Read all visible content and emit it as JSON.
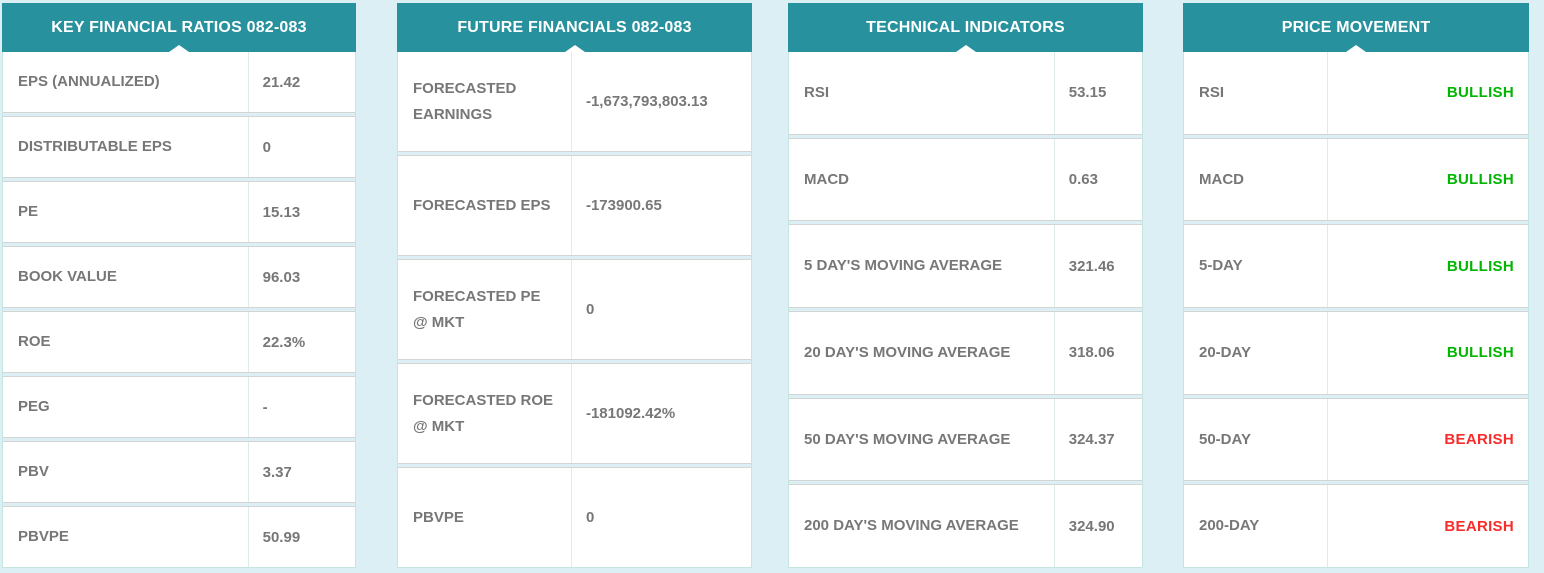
{
  "theme": {
    "page_background": "#dbeff5",
    "header_background": "#27919e",
    "header_text": "#ffffff",
    "label_color": "#777777",
    "bullish_color": "#01b501",
    "bearish_color": "#fa2b2b"
  },
  "panels": [
    {
      "title": "KEY FINANCIAL RATIOS 082-083",
      "rows": [
        {
          "label": "EPS (ANNUALIZED)",
          "value": "21.42"
        },
        {
          "label": "DISTRIBUTABLE EPS",
          "value": "0"
        },
        {
          "label": "PE",
          "value": "15.13"
        },
        {
          "label": "BOOK VALUE",
          "value": "96.03"
        },
        {
          "label": "ROE",
          "value": "22.3%"
        },
        {
          "label": "PEG",
          "value": "-"
        },
        {
          "label": "PBV",
          "value": "3.37"
        },
        {
          "label": "PBVPE",
          "value": "50.99"
        }
      ]
    },
    {
      "title": "FUTURE FINANCIALS 082-083",
      "rows": [
        {
          "label": "FORECASTED\nEARNINGS",
          "value": "-1,673,793,803.13"
        },
        {
          "label": "FORECASTED EPS",
          "value": "-173900.65"
        },
        {
          "label": "FORECASTED PE\n@ MKT",
          "value": "0"
        },
        {
          "label": "FORECASTED ROE\n@ MKT",
          "value": "-181092.42%"
        },
        {
          "label": "PBVPE",
          "value": "0"
        }
      ]
    },
    {
      "title": "TECHNICAL INDICATORS",
      "rows": [
        {
          "label": "RSI",
          "value": "53.15"
        },
        {
          "label": "MACD",
          "value": "0.63"
        },
        {
          "label": "5 DAY'S MOVING AVERAGE",
          "value": "321.46"
        },
        {
          "label": "20 DAY'S MOVING AVERAGE",
          "value": "318.06"
        },
        {
          "label": "50 DAY'S MOVING AVERAGE",
          "value": "324.37"
        },
        {
          "label": "200 DAY'S MOVING AVERAGE",
          "value": "324.90"
        }
      ]
    },
    {
      "title": "PRICE MOVEMENT",
      "rows": [
        {
          "label": "RSI",
          "value": "BULLISH",
          "status": "bullish"
        },
        {
          "label": "MACD",
          "value": "BULLISH",
          "status": "bullish"
        },
        {
          "label": "5-DAY",
          "value": "BULLISH",
          "status": "bullish"
        },
        {
          "label": "20-DAY",
          "value": "BULLISH",
          "status": "bullish"
        },
        {
          "label": "50-DAY",
          "value": "BEARISH",
          "status": "bearish"
        },
        {
          "label": "200-DAY",
          "value": "BEARISH",
          "status": "bearish"
        }
      ]
    }
  ]
}
